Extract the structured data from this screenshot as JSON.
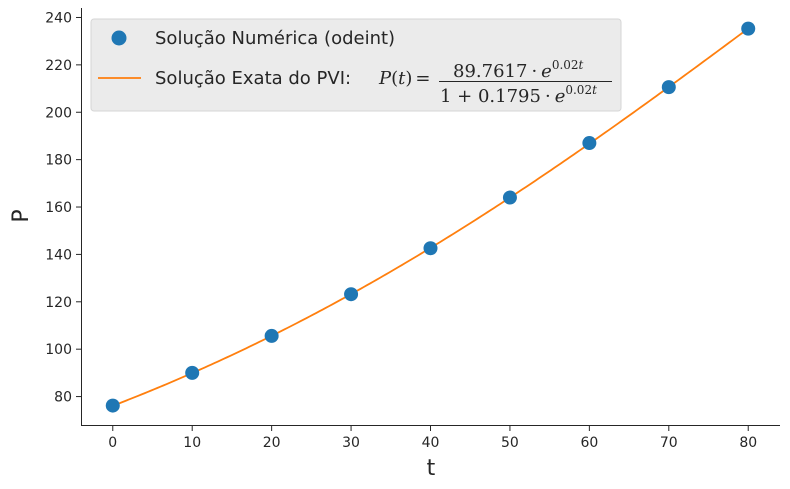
{
  "chart_data": {
    "type": "scatter",
    "xlabel": "t",
    "ylabel": "P",
    "xlim": [
      -4,
      84
    ],
    "ylim": [
      68,
      244
    ],
    "xticks": [
      0,
      10,
      20,
      30,
      40,
      50,
      60,
      70,
      80
    ],
    "yticks": [
      80,
      100,
      120,
      140,
      160,
      180,
      200,
      220,
      240
    ],
    "grid": false,
    "legend_position": "top-left",
    "colors": {
      "numeric": "#1f77b4",
      "exact": "#ff7f0e",
      "legend_bg": "#ebebeb"
    },
    "series": [
      {
        "name": "Solução Numérica (odeint)",
        "kind": "scatter",
        "x": [
          0,
          10,
          20,
          30,
          40,
          50,
          60,
          70,
          80
        ],
        "y": [
          76.2,
          90.0,
          105.6,
          123.2,
          142.6,
          164.0,
          187.0,
          210.6,
          235.3
        ]
      },
      {
        "name": "Solução Exata do PVI:",
        "kind": "line",
        "formula": {
          "lhs_func": "P",
          "lhs_var": "t",
          "equals": "=",
          "numerator_coef": "89.7617",
          "denominator_const": "1 + 0.1795",
          "dot": "·",
          "exp_base": "e",
          "exp_coef": "0.02",
          "exp_var": "t"
        },
        "params": {
          "a": 89.7617,
          "b": 0.1795,
          "k": 0.02
        }
      }
    ]
  }
}
